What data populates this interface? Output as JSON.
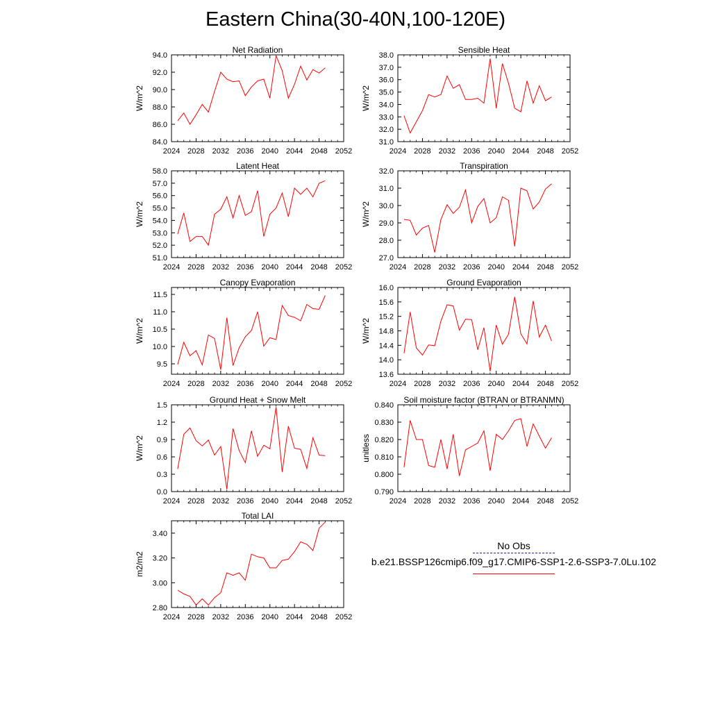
{
  "title": "Eastern China(30-40N,100-120E)",
  "legend": {
    "obs_label": "No Obs",
    "run_label": "b.e21.BSSP126cmip6.f09_g17.CMIP6-SSP1-2.6-SSP3-7.0Lu.102",
    "obs_color": "#1f1fa0",
    "run_color": "#ff0000"
  },
  "chart_data": [
    {
      "type": "line",
      "title": "Net Radiation",
      "ylabel": "W/m^2",
      "xlim": [
        2024,
        2052
      ],
      "xticks": [
        2024,
        2028,
        2032,
        2036,
        2040,
        2044,
        2048,
        2052
      ],
      "ylim": [
        84,
        94
      ],
      "yticks": [
        84,
        86,
        88,
        90,
        92,
        94
      ],
      "ytick_decimals": 1,
      "series": [
        {
          "color": "#ff0000",
          "x": [
            2025,
            2026,
            2027,
            2028,
            2029,
            2030,
            2031,
            2032,
            2033,
            2034,
            2035,
            2036,
            2037,
            2038,
            2039,
            2040,
            2041,
            2042,
            2043,
            2044,
            2045,
            2046,
            2047,
            2048,
            2049
          ],
          "y": [
            86.4,
            87.3,
            86.0,
            87.1,
            88.3,
            87.4,
            89.8,
            92.0,
            91.2,
            90.9,
            91.0,
            89.3,
            90.3,
            91.0,
            91.2,
            89.0,
            93.9,
            92.2,
            89.0,
            90.6,
            92.7,
            91.1,
            92.3,
            91.9,
            92.5
          ]
        }
      ]
    },
    {
      "type": "line",
      "title": "Sensible Heat",
      "ylabel": "W/m^2",
      "xlim": [
        2024,
        2052
      ],
      "xticks": [
        2024,
        2028,
        2032,
        2036,
        2040,
        2044,
        2048,
        2052
      ],
      "ylim": [
        31,
        38
      ],
      "yticks": [
        31,
        32,
        33,
        34,
        35,
        36,
        37,
        38
      ],
      "ytick_decimals": 1,
      "series": [
        {
          "color": "#ff0000",
          "x": [
            2025,
            2026,
            2027,
            2028,
            2029,
            2030,
            2031,
            2032,
            2033,
            2034,
            2035,
            2036,
            2037,
            2038,
            2039,
            2040,
            2041,
            2042,
            2043,
            2044,
            2045,
            2046,
            2047,
            2048,
            2049
          ],
          "y": [
            33.1,
            31.7,
            32.6,
            33.5,
            34.8,
            34.6,
            34.8,
            36.3,
            35.3,
            35.6,
            34.4,
            34.4,
            34.5,
            34.1,
            37.7,
            33.7,
            37.3,
            35.7,
            33.7,
            33.4,
            35.9,
            34.1,
            35.5,
            34.3,
            34.6
          ]
        }
      ]
    },
    {
      "type": "line",
      "title": "Latent Heat",
      "ylabel": "W/m^2",
      "xlim": [
        2024,
        2052
      ],
      "xticks": [
        2024,
        2028,
        2032,
        2036,
        2040,
        2044,
        2048,
        2052
      ],
      "ylim": [
        51,
        58
      ],
      "yticks": [
        51,
        52,
        53,
        54,
        55,
        56,
        57,
        58
      ],
      "ytick_decimals": 1,
      "series": [
        {
          "color": "#ff0000",
          "x": [
            2025,
            2026,
            2027,
            2028,
            2029,
            2030,
            2031,
            2032,
            2033,
            2034,
            2035,
            2036,
            2037,
            2038,
            2039,
            2040,
            2041,
            2042,
            2043,
            2044,
            2045,
            2046,
            2047,
            2048,
            2049
          ],
          "y": [
            52.9,
            54.6,
            52.3,
            52.7,
            52.7,
            52.0,
            54.5,
            54.9,
            55.9,
            54.2,
            56.0,
            54.4,
            54.7,
            56.4,
            52.7,
            54.5,
            55.0,
            56.2,
            54.3,
            56.6,
            56.1,
            56.6,
            55.9,
            57.0,
            57.2
          ]
        }
      ]
    },
    {
      "type": "line",
      "title": "Transpiration",
      "ylabel": "W/m^2",
      "xlim": [
        2024,
        2052
      ],
      "xticks": [
        2024,
        2028,
        2032,
        2036,
        2040,
        2044,
        2048,
        2052
      ],
      "ylim": [
        27,
        32
      ],
      "yticks": [
        27,
        28,
        29,
        30,
        31,
        32
      ],
      "ytick_decimals": 1,
      "series": [
        {
          "color": "#ff0000",
          "x": [
            2025,
            2026,
            2027,
            2028,
            2029,
            2030,
            2031,
            2032,
            2033,
            2034,
            2035,
            2036,
            2037,
            2038,
            2039,
            2040,
            2041,
            2042,
            2043,
            2044,
            2045,
            2046,
            2047,
            2048,
            2049
          ],
          "y": [
            29.2,
            29.15,
            28.3,
            28.7,
            28.85,
            27.3,
            29.2,
            30.05,
            29.55,
            29.9,
            30.9,
            29.0,
            29.95,
            30.4,
            29.0,
            29.3,
            30.5,
            30.3,
            27.65,
            31.0,
            30.85,
            29.8,
            30.2,
            30.95,
            31.25
          ]
        }
      ]
    },
    {
      "type": "line",
      "title": "Canopy Evaporation",
      "ylabel": "W/m^2",
      "xlim": [
        2024,
        2052
      ],
      "xticks": [
        2024,
        2028,
        2032,
        2036,
        2040,
        2044,
        2048,
        2052
      ],
      "ylim": [
        9.2,
        11.7
      ],
      "yticks": [
        9.5,
        10.0,
        10.5,
        11.0,
        11.5
      ],
      "ytick_decimals": 1,
      "series": [
        {
          "color": "#ff0000",
          "x": [
            2025,
            2026,
            2027,
            2028,
            2029,
            2030,
            2031,
            2032,
            2033,
            2034,
            2035,
            2036,
            2037,
            2038,
            2039,
            2040,
            2041,
            2042,
            2043,
            2044,
            2045,
            2046,
            2047,
            2048,
            2049
          ],
          "y": [
            9.48,
            10.12,
            9.73,
            9.88,
            9.47,
            10.33,
            10.23,
            9.33,
            10.83,
            9.45,
            9.96,
            10.28,
            10.46,
            11.0,
            10.01,
            10.25,
            10.2,
            11.18,
            10.89,
            10.84,
            10.74,
            11.21,
            11.09,
            11.07,
            11.47
          ]
        }
      ]
    },
    {
      "type": "line",
      "title": "Ground Evaporation",
      "ylabel": "W/m^2",
      "xlim": [
        2024,
        2052
      ],
      "xticks": [
        2024,
        2028,
        2032,
        2036,
        2040,
        2044,
        2048,
        2052
      ],
      "ylim": [
        13.6,
        16.0
      ],
      "yticks": [
        13.6,
        14.0,
        14.4,
        14.8,
        15.2,
        15.6,
        16.0
      ],
      "ytick_decimals": 1,
      "series": [
        {
          "color": "#ff0000",
          "x": [
            2025,
            2026,
            2027,
            2028,
            2029,
            2030,
            2031,
            2032,
            2033,
            2034,
            2035,
            2036,
            2037,
            2038,
            2039,
            2040,
            2041,
            2042,
            2043,
            2044,
            2045,
            2046,
            2047,
            2048,
            2049
          ],
          "y": [
            14.18,
            15.32,
            14.33,
            14.13,
            14.41,
            14.39,
            15.07,
            15.52,
            15.49,
            14.82,
            15.12,
            15.11,
            14.28,
            14.89,
            13.68,
            14.96,
            14.43,
            14.71,
            15.74,
            14.72,
            14.44,
            15.63,
            14.63,
            14.96,
            14.52
          ]
        }
      ]
    },
    {
      "type": "line",
      "title": "Ground Heat + Snow Melt",
      "ylabel": "W/m^2",
      "xlim": [
        2024,
        2052
      ],
      "xticks": [
        2024,
        2028,
        2032,
        2036,
        2040,
        2044,
        2048,
        2052
      ],
      "ylim": [
        0,
        1.5
      ],
      "yticks": [
        0.0,
        0.3,
        0.6,
        0.9,
        1.2,
        1.5
      ],
      "ytick_decimals": 1,
      "series": [
        {
          "color": "#ff0000",
          "x": [
            2025,
            2026,
            2027,
            2028,
            2029,
            2030,
            2031,
            2032,
            2033,
            2034,
            2035,
            2036,
            2037,
            2038,
            2039,
            2040,
            2041,
            2042,
            2043,
            2044,
            2045,
            2046,
            2047,
            2048,
            2049
          ],
          "y": [
            0.39,
            0.99,
            1.1,
            0.88,
            0.79,
            0.89,
            0.63,
            0.78,
            0.04,
            1.09,
            0.71,
            0.5,
            1.05,
            0.61,
            0.8,
            0.74,
            1.46,
            0.34,
            1.13,
            0.75,
            0.73,
            0.4,
            0.93,
            0.63,
            0.62
          ]
        }
      ]
    },
    {
      "type": "line",
      "title": "Soil moisture factor (BTRAN or BTRANMN)",
      "ylabel": "unitless",
      "xlim": [
        2024,
        2052
      ],
      "xticks": [
        2024,
        2028,
        2032,
        2036,
        2040,
        2044,
        2048,
        2052
      ],
      "ylim": [
        0.79,
        0.84
      ],
      "yticks": [
        0.79,
        0.8,
        0.81,
        0.82,
        0.83,
        0.84
      ],
      "ytick_decimals": 3,
      "series": [
        {
          "color": "#ff0000",
          "x": [
            2025,
            2026,
            2027,
            2028,
            2029,
            2030,
            2031,
            2032,
            2033,
            2034,
            2035,
            2036,
            2037,
            2038,
            2039,
            2040,
            2041,
            2042,
            2043,
            2044,
            2045,
            2046,
            2047,
            2048,
            2049
          ],
          "y": [
            0.804,
            0.831,
            0.82,
            0.82,
            0.805,
            0.804,
            0.82,
            0.803,
            0.823,
            0.799,
            0.814,
            0.816,
            0.818,
            0.825,
            0.802,
            0.823,
            0.82,
            0.825,
            0.831,
            0.832,
            0.816,
            0.829,
            0.822,
            0.815,
            0.821
          ]
        }
      ]
    },
    {
      "type": "line",
      "title": "Total LAI",
      "ylabel": "m2/m2",
      "xlim": [
        2024,
        2052
      ],
      "xticks": [
        2024,
        2028,
        2032,
        2036,
        2040,
        2044,
        2048,
        2052
      ],
      "ylim": [
        2.8,
        3.5
      ],
      "yticks": [
        2.8,
        3.0,
        3.2,
        3.4
      ],
      "ytick_decimals": 2,
      "series": [
        {
          "color": "#ff0000",
          "x": [
            2025,
            2026,
            2027,
            2028,
            2029,
            2030,
            2031,
            2032,
            2033,
            2034,
            2035,
            2036,
            2037,
            2038,
            2039,
            2040,
            2041,
            2042,
            2043,
            2044,
            2045,
            2046,
            2047,
            2048,
            2049
          ],
          "y": [
            2.94,
            2.91,
            2.89,
            2.82,
            2.87,
            2.82,
            2.88,
            2.92,
            3.08,
            3.06,
            3.08,
            3.02,
            3.23,
            3.21,
            3.2,
            3.12,
            3.12,
            3.18,
            3.19,
            3.25,
            3.33,
            3.31,
            3.26,
            3.44,
            3.49
          ]
        }
      ]
    }
  ]
}
